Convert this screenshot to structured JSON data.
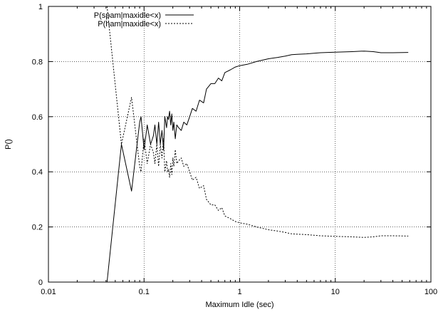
{
  "chart_data": {
    "type": "line",
    "title": "",
    "xlabel": "Maximum Idle (sec)",
    "ylabel": "P()",
    "xscale": "log",
    "xlim": [
      0.01,
      100
    ],
    "ylim": [
      0,
      1
    ],
    "grid": true,
    "legend_position": "top-left",
    "x_ticks": [
      {
        "value": 0.01,
        "label": "0.01"
      },
      {
        "value": 0.1,
        "label": "0.1"
      },
      {
        "value": 1,
        "label": "1"
      },
      {
        "value": 10,
        "label": "10"
      },
      {
        "value": 100,
        "label": "100"
      }
    ],
    "y_ticks": [
      {
        "value": 0,
        "label": "0"
      },
      {
        "value": 0.2,
        "label": "0.2"
      },
      {
        "value": 0.4,
        "label": "0.4"
      },
      {
        "value": 0.6,
        "label": "0.6"
      },
      {
        "value": 0.8,
        "label": "0.8"
      },
      {
        "value": 1,
        "label": "1"
      }
    ],
    "series": [
      {
        "name": "P(spam|maxidle<x)",
        "style": "solid",
        "color": "#000000",
        "x": [
          0.041,
          0.058,
          0.074,
          0.09,
          0.093,
          0.1,
          0.108,
          0.117,
          0.125,
          0.13,
          0.136,
          0.142,
          0.148,
          0.154,
          0.16,
          0.165,
          0.172,
          0.176,
          0.18,
          0.185,
          0.19,
          0.195,
          0.2,
          0.205,
          0.212,
          0.22,
          0.23,
          0.245,
          0.26,
          0.28,
          0.3,
          0.32,
          0.35,
          0.38,
          0.42,
          0.45,
          0.5,
          0.55,
          0.6,
          0.65,
          0.7,
          0.8,
          0.9,
          1.0,
          1.2,
          1.5,
          2.0,
          2.5,
          3.0,
          3.5,
          4.0,
          5.0,
          7.0,
          10.0,
          15.0,
          20.0,
          25.0,
          30.0,
          40.0,
          58.0
        ],
        "y": [
          0.0,
          0.5,
          0.33,
          0.58,
          0.6,
          0.48,
          0.57,
          0.5,
          0.53,
          0.57,
          0.5,
          0.58,
          0.5,
          0.55,
          0.48,
          0.6,
          0.56,
          0.6,
          0.59,
          0.62,
          0.57,
          0.61,
          0.55,
          0.58,
          0.52,
          0.57,
          0.56,
          0.55,
          0.58,
          0.57,
          0.6,
          0.63,
          0.62,
          0.66,
          0.65,
          0.7,
          0.72,
          0.72,
          0.74,
          0.73,
          0.76,
          0.77,
          0.78,
          0.785,
          0.79,
          0.8,
          0.81,
          0.815,
          0.82,
          0.825,
          0.826,
          0.828,
          0.832,
          0.834,
          0.836,
          0.838,
          0.836,
          0.832,
          0.832,
          0.833
        ]
      },
      {
        "name": "P(ham|maxidle<x)",
        "style": "dashed",
        "color": "#000000",
        "x": [
          0.041,
          0.058,
          0.074,
          0.09,
          0.093,
          0.1,
          0.108,
          0.117,
          0.125,
          0.13,
          0.136,
          0.142,
          0.148,
          0.154,
          0.16,
          0.165,
          0.172,
          0.176,
          0.18,
          0.185,
          0.19,
          0.195,
          0.2,
          0.205,
          0.212,
          0.22,
          0.23,
          0.245,
          0.26,
          0.28,
          0.3,
          0.32,
          0.35,
          0.38,
          0.42,
          0.45,
          0.5,
          0.55,
          0.6,
          0.65,
          0.7,
          0.8,
          0.9,
          1.0,
          1.2,
          1.5,
          2.0,
          2.5,
          3.0,
          3.5,
          4.0,
          5.0,
          7.0,
          10.0,
          15.0,
          20.0,
          25.0,
          30.0,
          40.0,
          58.0
        ],
        "y": [
          1.0,
          0.5,
          0.67,
          0.42,
          0.4,
          0.52,
          0.43,
          0.5,
          0.47,
          0.43,
          0.5,
          0.42,
          0.5,
          0.45,
          0.52,
          0.4,
          0.44,
          0.4,
          0.41,
          0.38,
          0.43,
          0.39,
          0.45,
          0.42,
          0.48,
          0.43,
          0.44,
          0.45,
          0.42,
          0.43,
          0.4,
          0.37,
          0.38,
          0.34,
          0.35,
          0.3,
          0.28,
          0.28,
          0.26,
          0.27,
          0.24,
          0.23,
          0.22,
          0.215,
          0.21,
          0.2,
          0.19,
          0.185,
          0.18,
          0.175,
          0.174,
          0.172,
          0.168,
          0.166,
          0.164,
          0.162,
          0.164,
          0.168,
          0.168,
          0.167
        ]
      }
    ]
  }
}
